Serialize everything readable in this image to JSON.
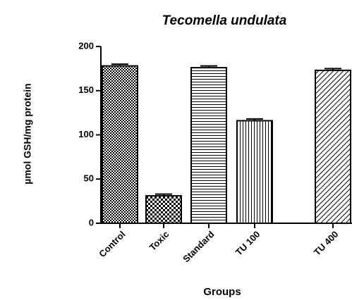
{
  "chart_data": {
    "type": "bar",
    "title": "Tecomella undulata",
    "x_label": "Groups",
    "y_label": "µmol GSH/mg protein",
    "categories": [
      "Control",
      "Toxic",
      "Standard",
      "TU 100",
      "TU 400"
    ],
    "values": [
      178,
      31,
      176,
      116,
      173
    ],
    "errors": [
      2,
      2,
      2,
      2,
      2
    ],
    "color": "#000000",
    "ylim": [
      0,
      200
    ],
    "yticks": [
      0,
      50,
      100,
      150,
      200
    ],
    "grid": false
  }
}
